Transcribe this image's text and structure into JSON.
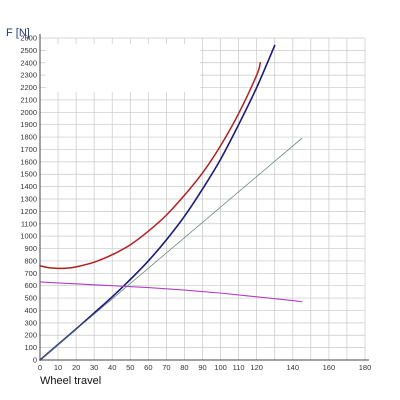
{
  "chart_data": {
    "type": "line",
    "xlabel": "Wheel travel",
    "ylabel": "F [N]",
    "xlim": [
      0,
      180
    ],
    "ylim": [
      0,
      2600
    ],
    "grid": true,
    "x_ticks": [
      0,
      10,
      20,
      30,
      40,
      50,
      60,
      70,
      80,
      90,
      100,
      110,
      120,
      140,
      160,
      180
    ],
    "y_ticks": [
      0,
      100,
      200,
      300,
      400,
      500,
      600,
      700,
      800,
      900,
      1000,
      1100,
      1200,
      1300,
      1400,
      1500,
      1600,
      1700,
      1800,
      1900,
      2000,
      2100,
      2200,
      2300,
      2400,
      2500,
      2600
    ],
    "series": [
      {
        "color": "#1a1a7a",
        "points": [
          [
            0,
            0
          ],
          [
            10,
            125
          ],
          [
            20,
            250
          ],
          [
            30,
            380
          ],
          [
            40,
            510
          ],
          [
            50,
            650
          ],
          [
            60,
            800
          ],
          [
            70,
            970
          ],
          [
            80,
            1160
          ],
          [
            90,
            1380
          ],
          [
            100,
            1620
          ],
          [
            110,
            1900
          ],
          [
            120,
            2200
          ],
          [
            130,
            2540
          ]
        ]
      },
      {
        "color": "#b02020",
        "points": [
          [
            0,
            760
          ],
          [
            5,
            745
          ],
          [
            10,
            740
          ],
          [
            15,
            742
          ],
          [
            20,
            752
          ],
          [
            30,
            790
          ],
          [
            40,
            850
          ],
          [
            50,
            930
          ],
          [
            60,
            1040
          ],
          [
            70,
            1170
          ],
          [
            80,
            1330
          ],
          [
            90,
            1510
          ],
          [
            100,
            1730
          ],
          [
            110,
            1990
          ],
          [
            120,
            2300
          ],
          [
            122,
            2400
          ]
        ]
      },
      {
        "color": "#5a7a6a",
        "points": [
          [
            0,
            0
          ],
          [
            145,
            1790
          ]
        ]
      },
      {
        "color": "#b040c0",
        "points": [
          [
            0,
            630
          ],
          [
            20,
            615
          ],
          [
            40,
            600
          ],
          [
            60,
            585
          ],
          [
            80,
            565
          ],
          [
            100,
            540
          ],
          [
            120,
            510
          ],
          [
            140,
            480
          ],
          [
            145,
            470
          ]
        ]
      }
    ]
  }
}
